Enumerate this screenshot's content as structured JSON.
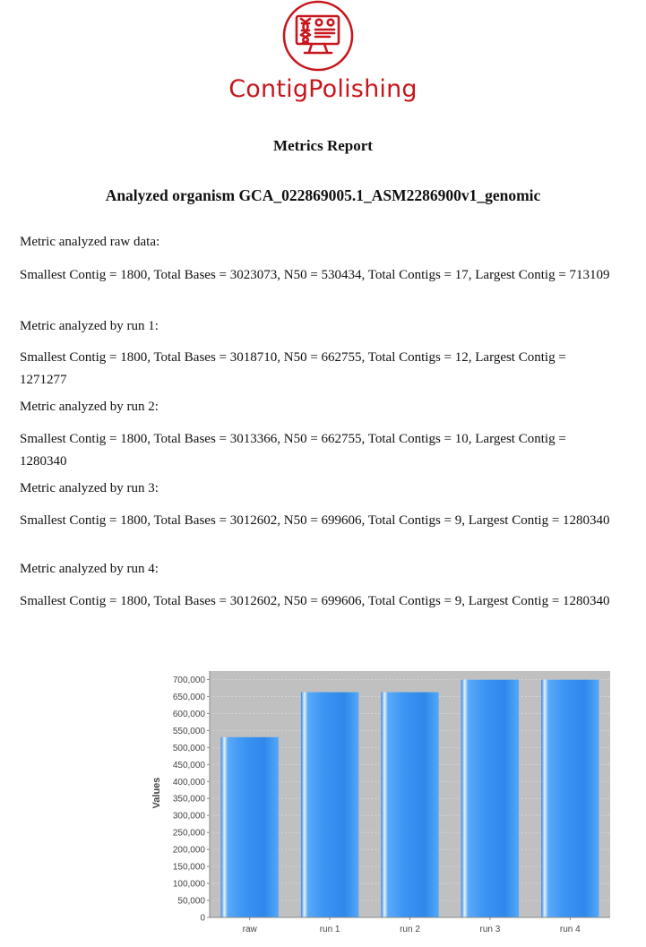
{
  "logo": {
    "text": "ContigPolishing",
    "brand_color": "#c8161d",
    "icon": "dna-monitor-icon"
  },
  "report": {
    "title": "Metrics Report",
    "organism_heading": "Analyzed organism GCA_022869005.1_ASM2286900v1_genomic",
    "sections": [
      {
        "label": "Metric analyzed raw data:",
        "metrics": "Smallest Contig = 1800, Total Bases = 3023073, N50 = 530434, Total Contigs = 17, Largest Contig = 713109"
      },
      {
        "label": "Metric analyzed by run 1:",
        "metrics": "Smallest Contig = 1800, Total Bases = 3018710, N50 = 662755, Total Contigs = 12, Largest Contig = 1271277"
      },
      {
        "label": "Metric analyzed by run 2:",
        "metrics": "Smallest Contig = 1800, Total Bases = 3013366, N50 = 662755, Total Contigs = 10, Largest Contig = 1280340"
      },
      {
        "label": "Metric analyzed by run 3:",
        "metrics": "Smallest Contig = 1800, Total Bases = 3012602, N50 = 699606, Total Contigs = 9, Largest Contig = 1280340"
      },
      {
        "label": "Metric analyzed by run 4:",
        "metrics": "Smallest Contig = 1800, Total Bases = 3012602, N50 = 699606, Total Contigs = 9, Largest Contig = 1280340"
      }
    ]
  },
  "chart_data": {
    "type": "bar",
    "categories": [
      "raw",
      "run 1",
      "run 2",
      "run 3",
      "run 4"
    ],
    "values": [
      530434,
      662755,
      662755,
      699606,
      699606
    ],
    "title": "",
    "xlabel": "",
    "ylabel": "Values",
    "ylim": [
      0,
      725000
    ],
    "yticks": [
      0,
      50000,
      100000,
      150000,
      200000,
      250000,
      300000,
      350000,
      400000,
      450000,
      500000,
      550000,
      600000,
      650000,
      700000
    ],
    "ytick_labels": [
      "0",
      "50,000",
      "100,000",
      "150,000",
      "200,000",
      "250,000",
      "300,000",
      "350,000",
      "400,000",
      "450,000",
      "500,000",
      "550,000",
      "600,000",
      "650,000",
      "700,000"
    ],
    "grid": true,
    "legend": "none",
    "bar_color": "#3d9bf5",
    "plot_background": "#c0c0c0"
  }
}
